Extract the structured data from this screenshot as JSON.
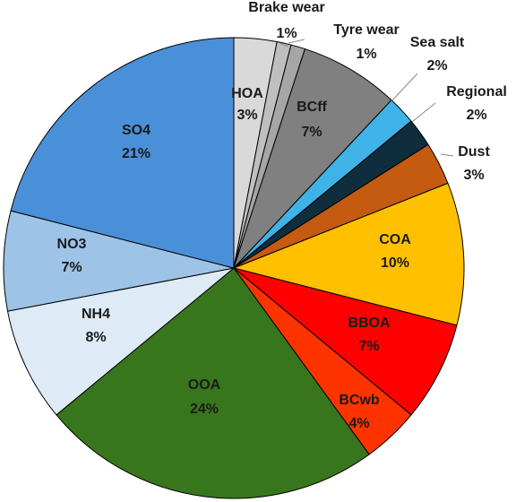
{
  "chart_data": {
    "type": "pie",
    "title": "",
    "slices": [
      {
        "label": "HOA",
        "value": 3,
        "value_label": "3%",
        "color": "#d9d9d9"
      },
      {
        "label": "Brake wear",
        "value": 1,
        "value_label": "1%",
        "color": "#bfbfbf"
      },
      {
        "label": "Tyre wear",
        "value": 1,
        "value_label": "1%",
        "color": "#a6a6a6"
      },
      {
        "label": "BCff",
        "value": 7,
        "value_label": "7%",
        "color": "#808080"
      },
      {
        "label": "Sea salt",
        "value": 2,
        "value_label": "2%",
        "color": "#3fb2e8"
      },
      {
        "label": "Regional",
        "value": 2,
        "value_label": "2%",
        "color": "#0f2d3d"
      },
      {
        "label": "Dust",
        "value": 3,
        "value_label": "3%",
        "color": "#c55a11"
      },
      {
        "label": "COA",
        "value": 10,
        "value_label": "10%",
        "color": "#ffc000"
      },
      {
        "label": "BBOA",
        "value": 7,
        "value_label": "7%",
        "color": "#ff0000"
      },
      {
        "label": "BCwb",
        "value": 4,
        "value_label": "4%",
        "color": "#ff3300"
      },
      {
        "label": "OOA",
        "value": 24,
        "value_label": "24%",
        "color": "#38761d"
      },
      {
        "label": "NH4",
        "value": 8,
        "value_label": "8%",
        "color": "#deebf7"
      },
      {
        "label": "NO3",
        "value": 7,
        "value_label": "7%",
        "color": "#9dc3e6"
      },
      {
        "label": "SO4",
        "value": 21,
        "value_label": "21%",
        "color": "#4a90d9"
      }
    ],
    "start_angle": "12 o'clock",
    "direction": "clockwise",
    "legend": "none"
  }
}
